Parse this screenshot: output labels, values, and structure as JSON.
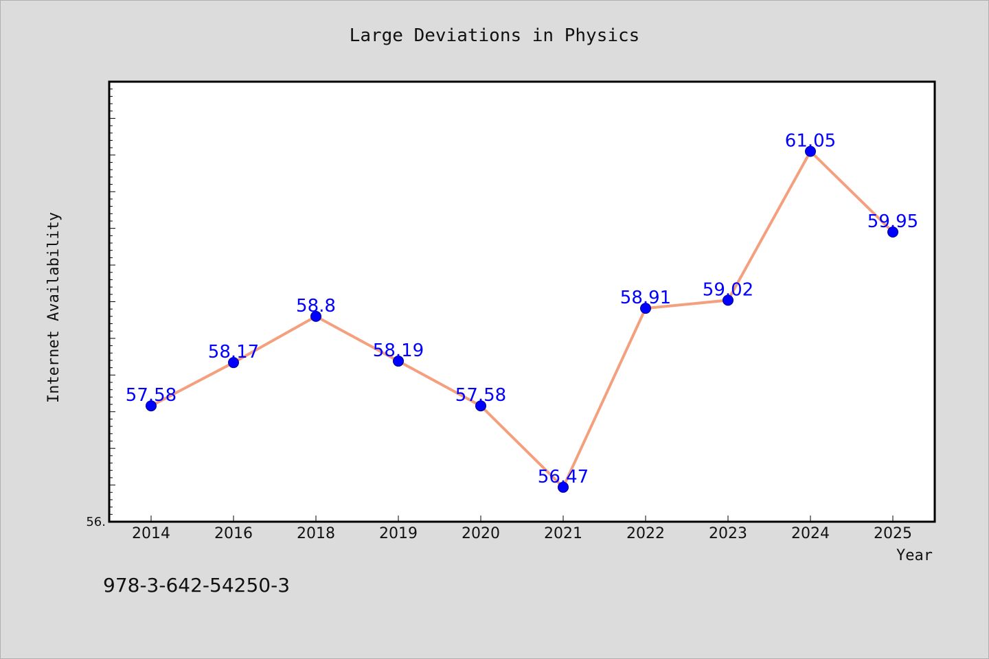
{
  "chart_data": {
    "type": "line",
    "title": "Large Deviations in Physics",
    "xlabel": "Year",
    "ylabel": "Internet Availability",
    "categories": [
      "2014",
      "2016",
      "2018",
      "2019",
      "2020",
      "2021",
      "2022",
      "2023",
      "2024",
      "2025"
    ],
    "series": [
      {
        "values": [
          57.58,
          58.17,
          58.8,
          58.19,
          57.58,
          56.47,
          58.91,
          59.02,
          61.05,
          59.95
        ]
      }
    ],
    "ylim": [
      56,
      62
    ],
    "ytick_label": "56.",
    "grid": false,
    "legend": "none",
    "data_labels": [
      "57.58",
      "58.17",
      "58.8",
      "58.19",
      "57.58",
      "56.47",
      "58.91",
      "59.02",
      "61.05",
      "59.95"
    ],
    "line_color": "#f4a07e",
    "marker_color": "#0000ff",
    "label_color": "#0000ff",
    "background_color": "#dcdcdc",
    "plot_background": "#ffffff"
  },
  "footer_note": "978-3-642-54250-3"
}
